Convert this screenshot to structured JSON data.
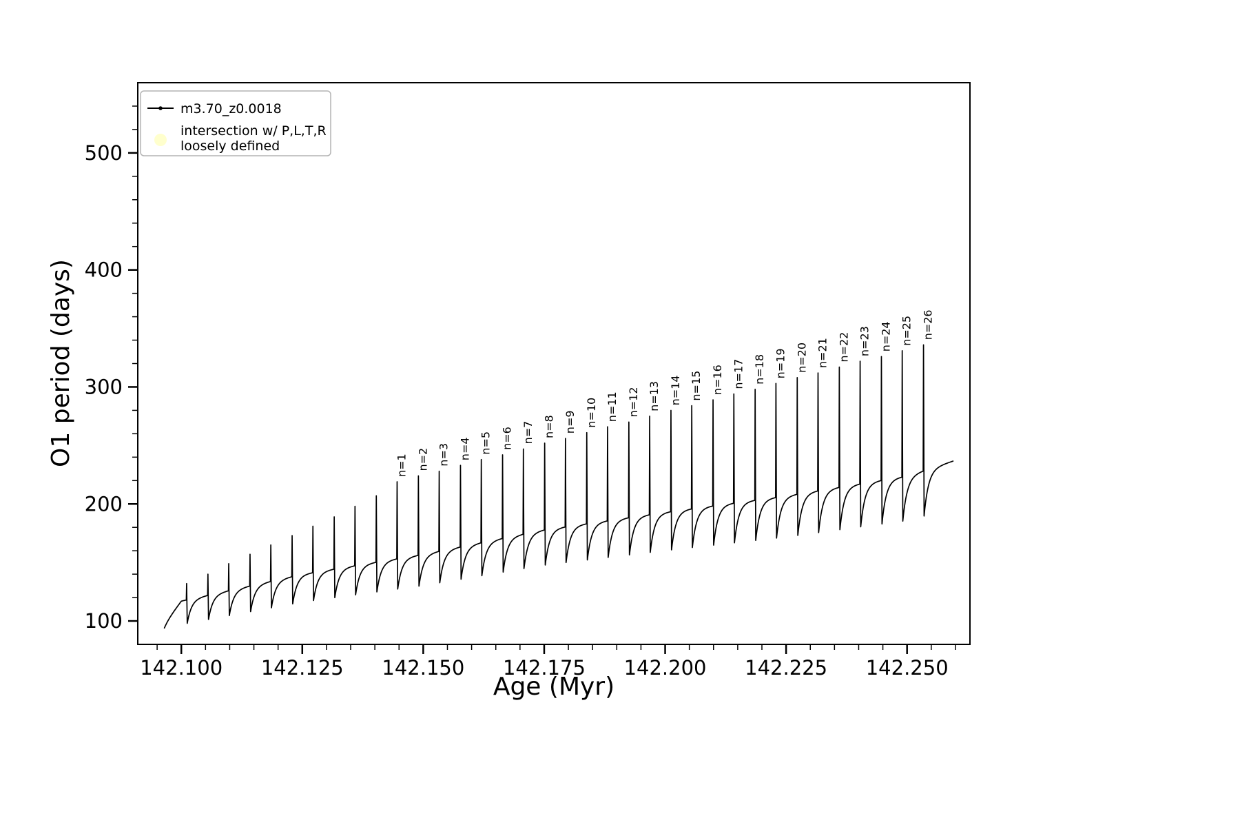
{
  "figure": {
    "background": "#ffffff"
  },
  "chart_data": {
    "type": "line",
    "title": "",
    "xlabel": "Age (Myr)",
    "ylabel": "O1 period (days)",
    "xlim": [
      142.091,
      142.263
    ],
    "ylim": [
      80,
      560
    ],
    "x_major_ticks": [
      142.1,
      142.125,
      142.15,
      142.175,
      142.2,
      142.225,
      142.25
    ],
    "x_tick_decimals": 3,
    "x_minor_step": 0.005,
    "y_major_ticks": [
      100,
      200,
      300,
      400,
      500
    ],
    "y_minor_step": 20,
    "grid": false,
    "legend": {
      "position": "upper-left",
      "entries": [
        {
          "label": "m3.70_z0.0018",
          "marker": "line-dot",
          "color": "#000000"
        },
        {
          "label_line1": "intersection w/ P,L,T,R",
          "label_line2": "loosely defined",
          "marker": "dot",
          "color": "#ffffc8"
        }
      ]
    },
    "series": {
      "name": "m3.70_z0.0018",
      "color": "#000000",
      "style": "pulse-train",
      "start": {
        "t": 142.0965,
        "v": 94
      },
      "end_t": 142.2595,
      "recovery_tau": 0.0009,
      "dip_fraction": 0.83,
      "baseline_anchors": {
        "t": [
          142.096,
          142.1,
          142.125,
          142.15,
          142.175,
          142.2,
          142.225,
          142.25,
          142.262
        ],
        "v": [
          95,
          117,
          140,
          157,
          178,
          193,
          207,
          224,
          240
        ]
      },
      "spikes": [
        {
          "label": null,
          "t": 142.1011,
          "peak": 132
        },
        {
          "label": null,
          "t": 142.1055,
          "peak": 140
        },
        {
          "label": null,
          "t": 142.1098,
          "peak": 149
        },
        {
          "label": null,
          "t": 142.1142,
          "peak": 157
        },
        {
          "label": null,
          "t": 142.1185,
          "peak": 165
        },
        {
          "label": null,
          "t": 142.1229,
          "peak": 173
        },
        {
          "label": null,
          "t": 142.1272,
          "peak": 181
        },
        {
          "label": null,
          "t": 142.1316,
          "peak": 189
        },
        {
          "label": null,
          "t": 142.1359,
          "peak": 198
        },
        {
          "label": null,
          "t": 142.1403,
          "peak": 207
        },
        {
          "label": "n=1",
          "t": 142.1446,
          "peak": 219
        },
        {
          "label": "n=2",
          "t": 142.149,
          "peak": 224
        },
        {
          "label": "n=3",
          "t": 142.1533,
          "peak": 228
        },
        {
          "label": "n=4",
          "t": 142.1577,
          "peak": 233
        },
        {
          "label": "n=5",
          "t": 142.162,
          "peak": 238
        },
        {
          "label": "n=6",
          "t": 142.1664,
          "peak": 242
        },
        {
          "label": "n=7",
          "t": 142.1707,
          "peak": 247
        },
        {
          "label": "n=8",
          "t": 142.1751,
          "peak": 252
        },
        {
          "label": "n=9",
          "t": 142.1794,
          "peak": 256
        },
        {
          "label": "n=10",
          "t": 142.1838,
          "peak": 261
        },
        {
          "label": "n=11",
          "t": 142.1881,
          "peak": 266
        },
        {
          "label": "n=12",
          "t": 142.1925,
          "peak": 270
        },
        {
          "label": "n=13",
          "t": 142.1968,
          "peak": 275
        },
        {
          "label": "n=14",
          "t": 142.2012,
          "peak": 280
        },
        {
          "label": "n=15",
          "t": 142.2055,
          "peak": 284
        },
        {
          "label": "n=16",
          "t": 142.2099,
          "peak": 289
        },
        {
          "label": "n=17",
          "t": 142.2142,
          "peak": 294
        },
        {
          "label": "n=18",
          "t": 142.2186,
          "peak": 298
        },
        {
          "label": "n=19",
          "t": 142.2229,
          "peak": 303
        },
        {
          "label": "n=20",
          "t": 142.2273,
          "peak": 308
        },
        {
          "label": "n=21",
          "t": 142.2316,
          "peak": 312
        },
        {
          "label": "n=22",
          "t": 142.236,
          "peak": 317
        },
        {
          "label": "n=23",
          "t": 142.2403,
          "peak": 322
        },
        {
          "label": "n=24",
          "t": 142.2447,
          "peak": 326
        },
        {
          "label": "n=25",
          "t": 142.249,
          "peak": 331
        },
        {
          "label": "n=26",
          "t": 142.2534,
          "peak": 336
        }
      ]
    }
  }
}
